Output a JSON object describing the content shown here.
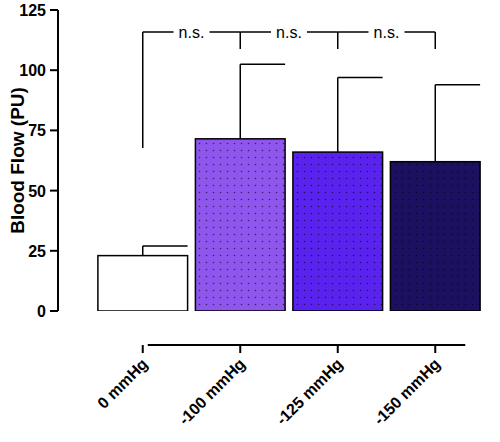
{
  "chart_data": {
    "type": "bar",
    "y_label": "Blood Flow (PU)",
    "categories": [
      "0 mmHg",
      "-100 mmHg",
      "-125 mmHg",
      "-150 mmHg"
    ],
    "values": [
      23,
      71.5,
      66,
      62
    ],
    "errors": [
      4,
      31,
      31,
      32
    ],
    "colors": [
      "#ffffff",
      "#8f56ee",
      "#5a22ee",
      "#1c1060"
    ],
    "ylim": [
      0,
      125
    ],
    "yticks": [
      0,
      25,
      50,
      75,
      100,
      125
    ],
    "annotations": [
      "n.s.",
      "n.s.",
      "n.s."
    ],
    "grid": false
  }
}
